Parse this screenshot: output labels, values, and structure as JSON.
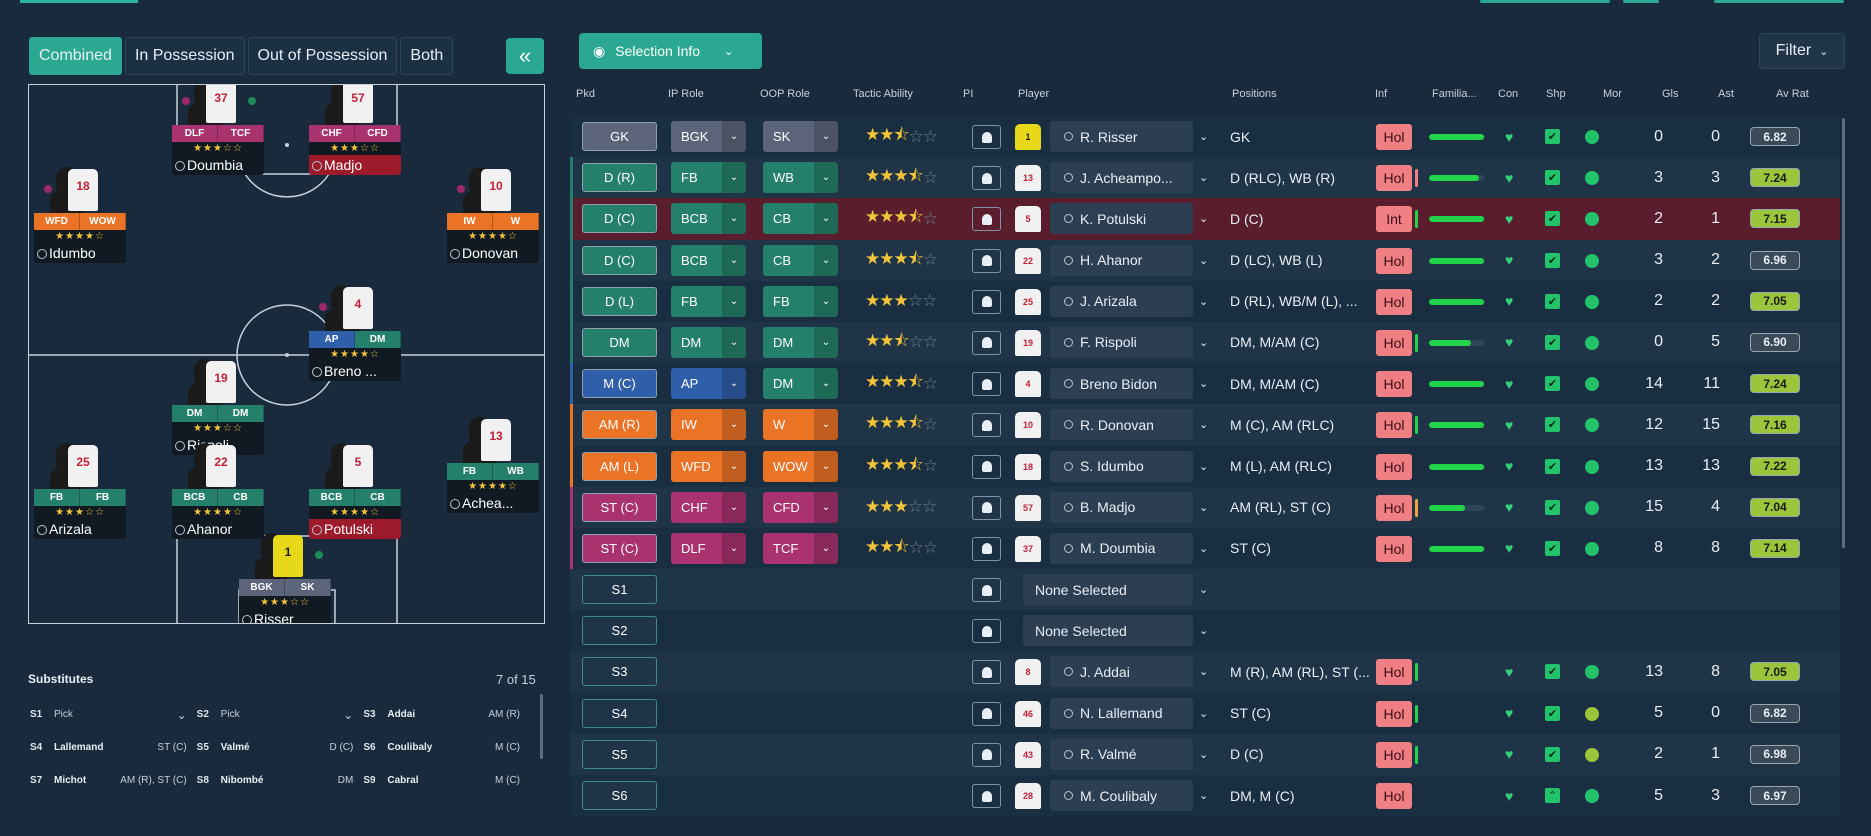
{
  "view_tabs": [
    "Combined",
    "In Possession",
    "Out of Possession",
    "Both"
  ],
  "collapse_label": "«",
  "selection_info_label": "Selection Info",
  "filter_label": "Filter",
  "columns": {
    "pkd": "Pkd",
    "ip_role": "IP Role",
    "oop_role": "OOP Role",
    "tactic_ability": "Tactic Ability",
    "pi": "PI",
    "player": "Player",
    "positions": "Positions",
    "inf": "Inf",
    "familiarity": "Familia...",
    "con": "Con",
    "shp": "Shp",
    "mor": "Mor",
    "gls": "Gls",
    "ast": "Ast",
    "av_rat": "Av Rat"
  },
  "pitch_players": [
    {
      "num": "37",
      "r1": "DLF",
      "r2": "TCF",
      "c1": "#a8336f",
      "c2": "#a8336f",
      "stars": "★★★☆☆",
      "name": "Doumbia",
      "red": false,
      "badge": true,
      "gbadge": true,
      "gk": false
    },
    {
      "num": "57",
      "r1": "CHF",
      "r2": "CFD",
      "c1": "#a8336f",
      "c2": "#a8336f",
      "stars": "★★★☆☆",
      "name": "Madjo",
      "red": true,
      "badge": false,
      "gbadge": false,
      "gk": false
    },
    {
      "num": "18",
      "r1": "WFD",
      "r2": "WOW",
      "c1": "#ea7326",
      "c2": "#ea7326",
      "stars": "★★★★☆",
      "name": "Idumbo",
      "red": false,
      "badge": true,
      "gbadge": false,
      "gk": false
    },
    {
      "num": "10",
      "r1": "IW",
      "r2": "W",
      "c1": "#ea7326",
      "c2": "#ea7326",
      "stars": "★★★★☆",
      "name": "Donovan",
      "red": false,
      "badge": true,
      "gbadge": false,
      "gk": false
    },
    {
      "num": "4",
      "r1": "AP",
      "r2": "DM",
      "c1": "#2f5fa8",
      "c2": "#24806a",
      "stars": "★★★★☆",
      "name": "Breno ...",
      "red": false,
      "badge": true,
      "gbadge": false,
      "gk": false
    },
    {
      "num": "19",
      "r1": "DM",
      "r2": "DM",
      "c1": "#24806a",
      "c2": "#24806a",
      "stars": "★★★☆☆",
      "name": "Rispoli",
      "red": false,
      "badge": false,
      "gbadge": false,
      "gk": false
    },
    {
      "num": "13",
      "r1": "FB",
      "r2": "WB",
      "c1": "#24806a",
      "c2": "#24806a",
      "stars": "★★★★☆",
      "name": "Achea...",
      "red": false,
      "badge": false,
      "gbadge": false,
      "gk": false
    },
    {
      "num": "25",
      "r1": "FB",
      "r2": "FB",
      "c1": "#24806a",
      "c2": "#24806a",
      "stars": "★★★☆☆",
      "name": "Arizala",
      "red": false,
      "badge": false,
      "gbadge": false,
      "gk": false
    },
    {
      "num": "22",
      "r1": "BCB",
      "r2": "CB",
      "c1": "#24806a",
      "c2": "#24806a",
      "stars": "★★★★☆",
      "name": "Ahanor",
      "red": false,
      "badge": false,
      "gbadge": false,
      "gk": false
    },
    {
      "num": "5",
      "r1": "BCB",
      "r2": "CB",
      "c1": "#24806a",
      "c2": "#24806a",
      "stars": "★★★★☆",
      "name": "Potulski",
      "red": true,
      "badge": false,
      "gbadge": false,
      "gk": false
    },
    {
      "num": "1",
      "r1": "BGK",
      "r2": "SK",
      "c1": "#5b6479",
      "c2": "#5b6479",
      "stars": "★★★☆☆",
      "name": "Risser",
      "red": false,
      "badge": false,
      "gbadge": true,
      "gk": true
    }
  ],
  "subs_title": "Substitutes",
  "subs_count": "7 of 15",
  "subs": [
    {
      "slot": "S1",
      "name": "Pick",
      "pos": "",
      "pick": true
    },
    {
      "slot": "S2",
      "name": "Pick",
      "pos": "",
      "pick": true
    },
    {
      "slot": "S3",
      "name": "Addai",
      "pos": "AM (R)",
      "pick": false
    },
    {
      "slot": "S4",
      "name": "Lallemand",
      "pos": "ST (C)",
      "pick": false
    },
    {
      "slot": "S5",
      "name": "Valmé",
      "pos": "D (C)",
      "pick": false
    },
    {
      "slot": "S6",
      "name": "Coulibaly",
      "pos": "M (C)",
      "pick": false
    },
    {
      "slot": "S7",
      "name": "Michot",
      "pos": "AM (R), ST (C)",
      "pick": false
    },
    {
      "slot": "S8",
      "name": "Nibombé",
      "pos": "DM",
      "pick": false
    },
    {
      "slot": "S9",
      "name": "Cabral",
      "pos": "M (C)",
      "pick": false
    }
  ],
  "rows": [
    {
      "pkd": "GK",
      "pkd_col": "#5b6479",
      "ip": "BGK",
      "oop": "SK",
      "role_col": "#5b6479",
      "stars": 2.5,
      "kit": "1",
      "gk": true,
      "player": "R. Risser",
      "positions": "GK",
      "inf": "Hol",
      "infbar": "",
      "fam": 0.98,
      "con": "♥",
      "shp": "✔",
      "mor": "#22c36a",
      "gls": "0",
      "ast": "0",
      "avr": "6.82",
      "avr_col": "#3a4a58",
      "hl": false,
      "none": false,
      "edge": ""
    },
    {
      "pkd": "D (R)",
      "pkd_col": "#24806a",
      "ip": "FB",
      "oop": "WB",
      "role_col": "#24806a",
      "stars": 3.5,
      "kit": "13",
      "gk": false,
      "player": "J. Acheampo...",
      "positions": "D (RLC), WB (R)",
      "inf": "Hol",
      "infbar": "#f07f84",
      "fam": 0.9,
      "con": "♥",
      "shp": "✔",
      "mor": "#22c36a",
      "gls": "3",
      "ast": "3",
      "avr": "7.24",
      "avr_col": "#9bc53a",
      "hl": false,
      "none": false,
      "edge": "#24806a"
    },
    {
      "pkd": "D (C)",
      "pkd_col": "#24806a",
      "ip": "BCB",
      "oop": "CB",
      "role_col": "#24806a",
      "stars": 3.5,
      "kit": "5",
      "gk": false,
      "player": "K. Potulski",
      "positions": "D (C)",
      "inf": "Int",
      "infbar": "#22d44a",
      "fam": 0.98,
      "con": "♥",
      "shp": "✔",
      "mor": "#22c36a",
      "gls": "2",
      "ast": "1",
      "avr": "7.15",
      "avr_col": "#9bc53a",
      "hl": true,
      "none": false,
      "edge": "#24806a"
    },
    {
      "pkd": "D (C)",
      "pkd_col": "#24806a",
      "ip": "BCB",
      "oop": "CB",
      "role_col": "#24806a",
      "stars": 3.5,
      "kit": "22",
      "gk": false,
      "player": "H. Ahanor",
      "positions": "D (LC), WB (L)",
      "inf": "Hol",
      "infbar": "",
      "fam": 0.98,
      "con": "♥",
      "shp": "✔",
      "mor": "#22c36a",
      "gls": "3",
      "ast": "2",
      "avr": "6.96",
      "avr_col": "#3a4a58",
      "hl": false,
      "none": false,
      "edge": "#24806a"
    },
    {
      "pkd": "D (L)",
      "pkd_col": "#24806a",
      "ip": "FB",
      "oop": "FB",
      "role_col": "#24806a",
      "stars": 3,
      "kit": "25",
      "gk": false,
      "player": "J. Arizala",
      "positions": "D (RL), WB/M (L), ...",
      "inf": "Hol",
      "infbar": "",
      "fam": 0.98,
      "con": "♥",
      "shp": "✔",
      "mor": "#22c36a",
      "gls": "2",
      "ast": "2",
      "avr": "7.05",
      "avr_col": "#9bc53a",
      "hl": false,
      "none": false,
      "edge": "#24806a"
    },
    {
      "pkd": "DM",
      "pkd_col": "#24806a",
      "ip": "DM",
      "oop": "DM",
      "role_col": "#24806a",
      "stars": 2.5,
      "kit": "19",
      "gk": false,
      "player": "F. Rispoli",
      "positions": "DM, M/AM (C)",
      "inf": "Hol",
      "infbar": "#22d44a",
      "fam": 0.75,
      "con": "♥",
      "shp": "✔",
      "mor": "#22c36a",
      "gls": "0",
      "ast": "5",
      "avr": "6.90",
      "avr_col": "#3a4a58",
      "hl": false,
      "none": false,
      "edge": "#24806a"
    },
    {
      "pkd": "M (C)",
      "pkd_col": "#2f5fa8",
      "ip": "AP",
      "oop": "DM",
      "role_col": "#2f5fa8",
      "oop_col": "#24806a",
      "stars": 3.5,
      "kit": "4",
      "gk": false,
      "player": "Breno Bidon",
      "positions": "DM, M/AM (C)",
      "inf": "Hol",
      "infbar": "",
      "fam": 0.98,
      "con": "♥",
      "shp": "✔",
      "mor": "#22c36a",
      "gls": "14",
      "ast": "11",
      "avr": "7.24",
      "avr_col": "#9bc53a",
      "hl": false,
      "none": false,
      "edge": "#2f5fa8"
    },
    {
      "pkd": "AM (R)",
      "pkd_col": "#ea7326",
      "ip": "IW",
      "oop": "W",
      "role_col": "#ea7326",
      "stars": 3.5,
      "kit": "10",
      "gk": false,
      "player": "R. Donovan",
      "positions": "M (C), AM (RLC)",
      "inf": "Hol",
      "infbar": "#22d44a",
      "fam": 0.98,
      "con": "♥",
      "shp": "✔",
      "mor": "#22c36a",
      "gls": "12",
      "ast": "15",
      "avr": "7.16",
      "avr_col": "#9bc53a",
      "hl": false,
      "none": false,
      "edge": "#ea7326"
    },
    {
      "pkd": "AM (L)",
      "pkd_col": "#ea7326",
      "ip": "WFD",
      "oop": "WOW",
      "role_col": "#ea7326",
      "stars": 3.5,
      "kit": "18",
      "gk": false,
      "player": "S. Idumbo",
      "positions": "M (L), AM (RLC)",
      "inf": "Hol",
      "infbar": "",
      "fam": 0.98,
      "con": "♥",
      "shp": "✔",
      "mor": "#22c36a",
      "gls": "13",
      "ast": "13",
      "avr": "7.22",
      "avr_col": "#9bc53a",
      "hl": false,
      "none": false,
      "edge": "#ea7326"
    },
    {
      "pkd": "ST (C)",
      "pkd_col": "#a8336f",
      "ip": "CHF",
      "oop": "CFD",
      "role_col": "#a8336f",
      "stars": 3,
      "kit": "57",
      "gk": false,
      "player": "B. Madjo",
      "positions": "AM (RL), ST (C)",
      "inf": "Hol",
      "infbar": "#f2a43a",
      "fam": 0.65,
      "con": "♥",
      "shp": "✔",
      "mor": "#22c36a",
      "gls": "15",
      "ast": "4",
      "avr": "7.04",
      "avr_col": "#9bc53a",
      "hl": false,
      "none": false,
      "edge": "#a8336f"
    },
    {
      "pkd": "ST (C)",
      "pkd_col": "#a8336f",
      "ip": "DLF",
      "oop": "TCF",
      "role_col": "#a8336f",
      "stars": 2.5,
      "kit": "37",
      "gk": false,
      "player": "M. Doumbia",
      "positions": "ST (C)",
      "inf": "Hol",
      "infbar": "",
      "fam": 0.98,
      "con": "♥",
      "shp": "✔",
      "mor": "#22c36a",
      "gls": "8",
      "ast": "8",
      "avr": "7.14",
      "avr_col": "#9bc53a",
      "hl": false,
      "none": false,
      "edge": "#a8336f"
    },
    {
      "pkd": "S1",
      "none": true,
      "player": "None Selected"
    },
    {
      "pkd": "S2",
      "none": true,
      "player": "None Selected"
    },
    {
      "pkd": "S3",
      "pkd_col": "",
      "kit": "8",
      "gk": false,
      "player": "J. Addai",
      "positions": "M (R), AM (RL), ST (...",
      "inf": "Hol",
      "infbar": "#22d44a",
      "fam": 0,
      "con": "♥",
      "shp": "✔",
      "mor": "#22c36a",
      "gls": "13",
      "ast": "8",
      "avr": "7.05",
      "avr_col": "#9bc53a",
      "hl": false,
      "none": false,
      "sub": true
    },
    {
      "pkd": "S4",
      "pkd_col": "",
      "kit": "46",
      "gk": false,
      "player": "N. Lallemand",
      "positions": "ST (C)",
      "inf": "Hol",
      "infbar": "#22d44a",
      "fam": 0,
      "con": "♥",
      "shp": "✔",
      "mor": "#9bc53a",
      "gls": "5",
      "ast": "0",
      "avr": "6.82",
      "avr_col": "#3a4a58",
      "hl": false,
      "none": false,
      "sub": true
    },
    {
      "pkd": "S5",
      "pkd_col": "",
      "kit": "43",
      "gk": false,
      "player": "R. Valmé",
      "positions": "D (C)",
      "inf": "Hol",
      "infbar": "#22d44a",
      "fam": 0,
      "con": "♥",
      "shp": "✔",
      "mor": "#9bc53a",
      "gls": "2",
      "ast": "1",
      "avr": "6.98",
      "avr_col": "#3a4a58",
      "hl": false,
      "none": false,
      "sub": true
    },
    {
      "pkd": "S6",
      "pkd_col": "",
      "kit": "28",
      "gk": false,
      "player": "M. Coulibaly",
      "positions": "DM, M (C)",
      "inf": "Hol",
      "infbar": "",
      "fam": 0,
      "con": "♥",
      "shp": "⌃",
      "mor": "#22c36a",
      "gls": "5",
      "ast": "3",
      "avr": "6.97",
      "avr_col": "#3a4a58",
      "hl": false,
      "none": false,
      "sub": true
    }
  ]
}
